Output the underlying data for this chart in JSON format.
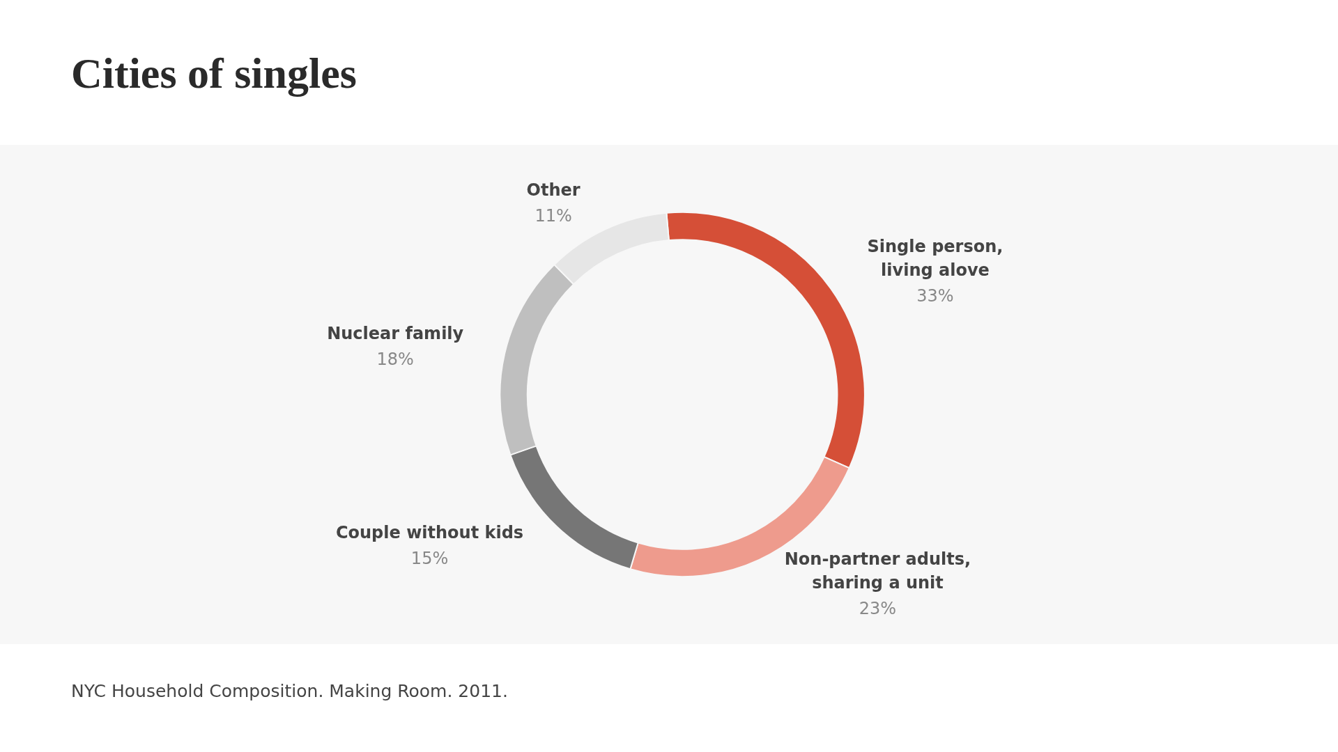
{
  "chart_data": {
    "type": "donut",
    "title": "Cities of singles",
    "categories": [
      "Single person,\nliving alove",
      "Non-partner adults,\nsharing a unit",
      "Couple without kids",
      "Nuclear family",
      "Other"
    ],
    "values": [
      33,
      23,
      15,
      18,
      11
    ],
    "colors": [
      "#d54f37",
      "#ee9b8d",
      "#767676",
      "#bfbfbf",
      "#e6e6e6"
    ],
    "value_labels": [
      "33%",
      "23%",
      "15%",
      "18%",
      "11%"
    ],
    "legend": false,
    "annotations": [
      "NYC Household Composition. Making Room. 2011."
    ]
  }
}
